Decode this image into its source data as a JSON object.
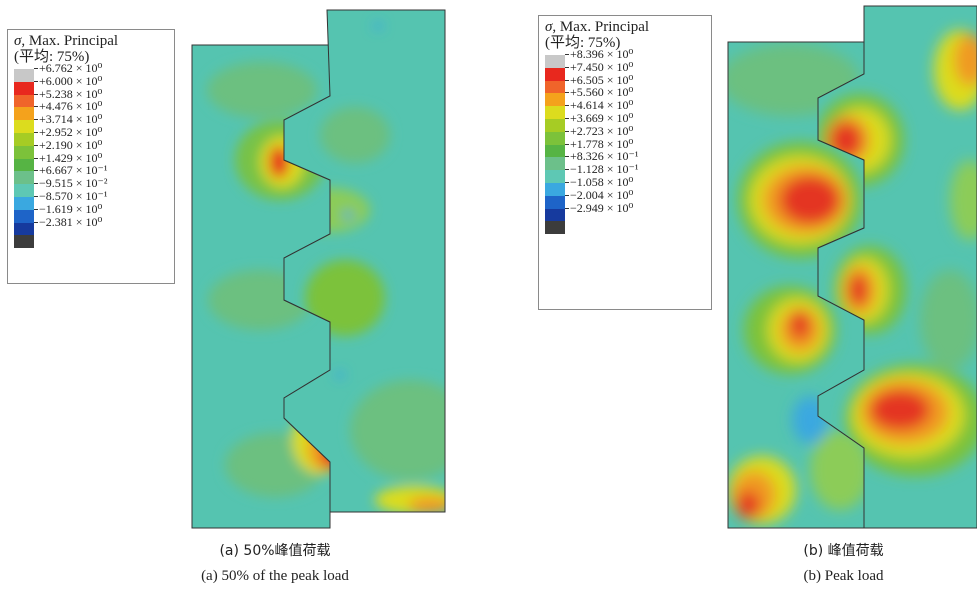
{
  "panels": [
    {
      "id": "a",
      "legend": {
        "title_symbol": "σ",
        "title": ", Max. Principal",
        "subtitle": "(平均: 75%)",
        "values": [
          "+6.762 × 10⁰",
          "+6.000 × 10⁰",
          "+5.238 × 10⁰",
          "+4.476 × 10⁰",
          "+3.714 × 10⁰",
          "+2.952 × 10⁰",
          "+2.190 × 10⁰",
          "+1.429 × 10⁰",
          "+6.667 × 10⁻¹",
          "−9.515 × 10⁻²",
          "−8.570 × 10⁻¹",
          "−1.619 × 10⁰",
          "−2.381 × 10⁰"
        ]
      },
      "caption_zh": "(a) 50%峰值荷载",
      "caption_en": "(a) 50% of the peak load"
    },
    {
      "id": "b",
      "legend": {
        "title_symbol": "σ",
        "title": ", Max. Principal",
        "subtitle": "(平均: 75%)",
        "values": [
          "+8.396 × 10⁰",
          "+7.450 × 10⁰",
          "+6.505 × 10⁰",
          "+5.560 × 10⁰",
          "+4.614 × 10⁰",
          "+3.669 × 10⁰",
          "+2.723 × 10⁰",
          "+1.778 × 10⁰",
          "+8.326 × 10⁻¹",
          "−1.128 × 10⁻¹",
          "−1.058 × 10⁰",
          "−2.004 × 10⁰",
          "−2.949 × 10⁰"
        ]
      },
      "caption_zh": "(b) 峰值荷载",
      "caption_en": "(b) Peak load"
    }
  ],
  "colors": {
    "swatches": [
      "#c8c8c8",
      "#e8281e",
      "#f0642a",
      "#f4a21c",
      "#dcdc1e",
      "#a6cc24",
      "#7cc23a",
      "#56b444",
      "#6cc08a",
      "#5ec8b4",
      "#3aa8e0",
      "#1e64c8",
      "#163a9e",
      "#3c3c3c"
    ],
    "background_field": "#55c4b0",
    "green_zone": "#6cc080",
    "light_green_zone": "#8ccc58",
    "yellow_zone": "#d8d820",
    "orange_zone": "#f09a20",
    "red_zone": "#e43420",
    "blue_zone": "#2f8fe0"
  }
}
